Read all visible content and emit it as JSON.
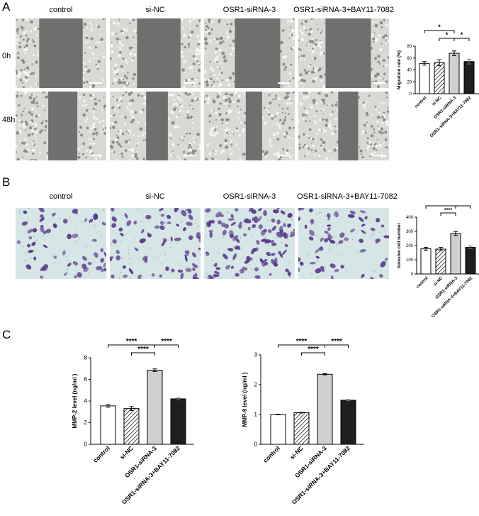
{
  "panels": {
    "A": {
      "letter": "A",
      "columns": [
        "control",
        "si-NC",
        "OSR1-siRNA-3",
        "OSR1-siRNA-3+BAY11-7082"
      ],
      "rows": [
        "0h",
        "48h"
      ]
    },
    "B": {
      "letter": "B",
      "columns": [
        "control",
        "si-NC",
        "OSR1-siRNA-3",
        "OSR1-siRNA-3+BAY11-7082"
      ]
    },
    "C": {
      "letter": "C"
    }
  },
  "colors": {
    "wound_bg": "#6f6f6f",
    "cell_bg": "#d9d9d3",
    "stain_bg": "#d6e6e6",
    "stain_cell": "#5a3a8e",
    "bar_light": "#d0d0d0",
    "bar_dark": "#1e1e1e"
  },
  "chart_data": [
    {
      "id": "migration",
      "type": "bar",
      "categories": [
        "control",
        "si-NC",
        "OSR1-siRNA-3",
        "OSR1-siRNA-3+BAY11-7082"
      ],
      "values": [
        51,
        52,
        68,
        54
      ],
      "errors": [
        3,
        5,
        4,
        4
      ],
      "fills": [
        "white",
        "hatch",
        "light",
        "dark"
      ],
      "ylabel": "Migration rate (%)",
      "ylim": [
        0,
        80
      ],
      "yticks": [
        "0",
        "20",
        "40",
        "60",
        "80"
      ],
      "significance": [
        {
          "from": 0,
          "to": 2,
          "label": "*",
          "level": 1
        },
        {
          "from": 1,
          "to": 2,
          "label": "*",
          "level": 0
        },
        {
          "from": 2,
          "to": 3,
          "label": "*",
          "level": 0
        }
      ]
    },
    {
      "id": "invasion",
      "type": "bar",
      "categories": [
        "control",
        "si-NC",
        "OSR1-siRNA-3",
        "OSR1-siRNA-3+BAY11-7082"
      ],
      "values": [
        178,
        175,
        285,
        188
      ],
      "errors": [
        10,
        12,
        14,
        10
      ],
      "fills": [
        "white",
        "hatch",
        "light",
        "dark"
      ],
      "ylabel": "Invasive cell number",
      "ylim": [
        0,
        400
      ],
      "yticks": [
        "0",
        "100",
        "200",
        "300",
        "400"
      ],
      "significance": [
        {
          "from": 0,
          "to": 2,
          "label": "****",
          "level": 1
        },
        {
          "from": 1,
          "to": 2,
          "label": "****",
          "level": 0
        },
        {
          "from": 2,
          "to": 3,
          "label": "****",
          "level": 1
        }
      ]
    },
    {
      "id": "mmp2",
      "type": "bar",
      "categories": [
        "control",
        "si-NC",
        "OSR1-siRNA-3",
        "OSR1-siRNA-3+BAY11-7082"
      ],
      "values": [
        3.55,
        3.3,
        6.85,
        4.2
      ],
      "errors": [
        0.12,
        0.18,
        0.12,
        0.08
      ],
      "fills": [
        "white",
        "hatch",
        "light",
        "dark"
      ],
      "ylabel": "MMP-2 level (ng/ml )",
      "ylim": [
        0,
        8
      ],
      "yticks": [
        "0",
        "2",
        "4",
        "6",
        "8"
      ],
      "significance": [
        {
          "from": 0,
          "to": 2,
          "label": "****",
          "level": 1
        },
        {
          "from": 1,
          "to": 2,
          "label": "****",
          "level": 0
        },
        {
          "from": 2,
          "to": 3,
          "label": "****",
          "level": 1
        }
      ]
    },
    {
      "id": "mmp9",
      "type": "bar",
      "categories": [
        "control",
        "si-NC",
        "OSR1-siRNA-3",
        "OSR1-siRNA-3+BAY11-7082"
      ],
      "values": [
        1.0,
        1.06,
        2.35,
        1.48
      ],
      "errors": [
        0.01,
        0.01,
        0.02,
        0.02
      ],
      "fills": [
        "white",
        "hatch",
        "light",
        "dark"
      ],
      "ylabel": "MMP-9 level (ng/ml )",
      "ylim": [
        0,
        3
      ],
      "yticks": [
        "0",
        "1",
        "2",
        "3"
      ],
      "significance": [
        {
          "from": 0,
          "to": 2,
          "label": "****",
          "level": 1
        },
        {
          "from": 1,
          "to": 2,
          "label": "****",
          "level": 0
        },
        {
          "from": 2,
          "to": 3,
          "label": "****",
          "level": 1
        }
      ]
    }
  ]
}
